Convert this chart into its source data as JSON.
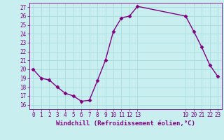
{
  "x": [
    0,
    1,
    2,
    3,
    4,
    5,
    6,
    7,
    8,
    9,
    10,
    11,
    12,
    13,
    19,
    20,
    21,
    22,
    23
  ],
  "y": [
    20.0,
    19.0,
    18.8,
    18.0,
    17.3,
    17.0,
    16.4,
    16.5,
    18.7,
    21.0,
    24.3,
    25.8,
    26.0,
    27.1,
    26.0,
    24.3,
    22.5,
    20.5,
    19.2
  ],
  "xlim": [
    -0.5,
    23.5
  ],
  "ylim": [
    15.5,
    27.5
  ],
  "yticks": [
    16,
    17,
    18,
    19,
    20,
    21,
    22,
    23,
    24,
    25,
    26,
    27
  ],
  "xticks": [
    0,
    1,
    2,
    3,
    4,
    5,
    6,
    7,
    8,
    9,
    10,
    11,
    12,
    13,
    19,
    20,
    21,
    22,
    23
  ],
  "xlabel": "Windchill (Refroidissement éolien,°C)",
  "line_color": "#800080",
  "marker": "D",
  "marker_size": 2.5,
  "bg_color": "#c8eef0",
  "grid_color": "#aadddd",
  "tick_color": "#800080",
  "linewidth": 1.0,
  "tick_fontsize": 5.5,
  "xlabel_fontsize": 6.5
}
